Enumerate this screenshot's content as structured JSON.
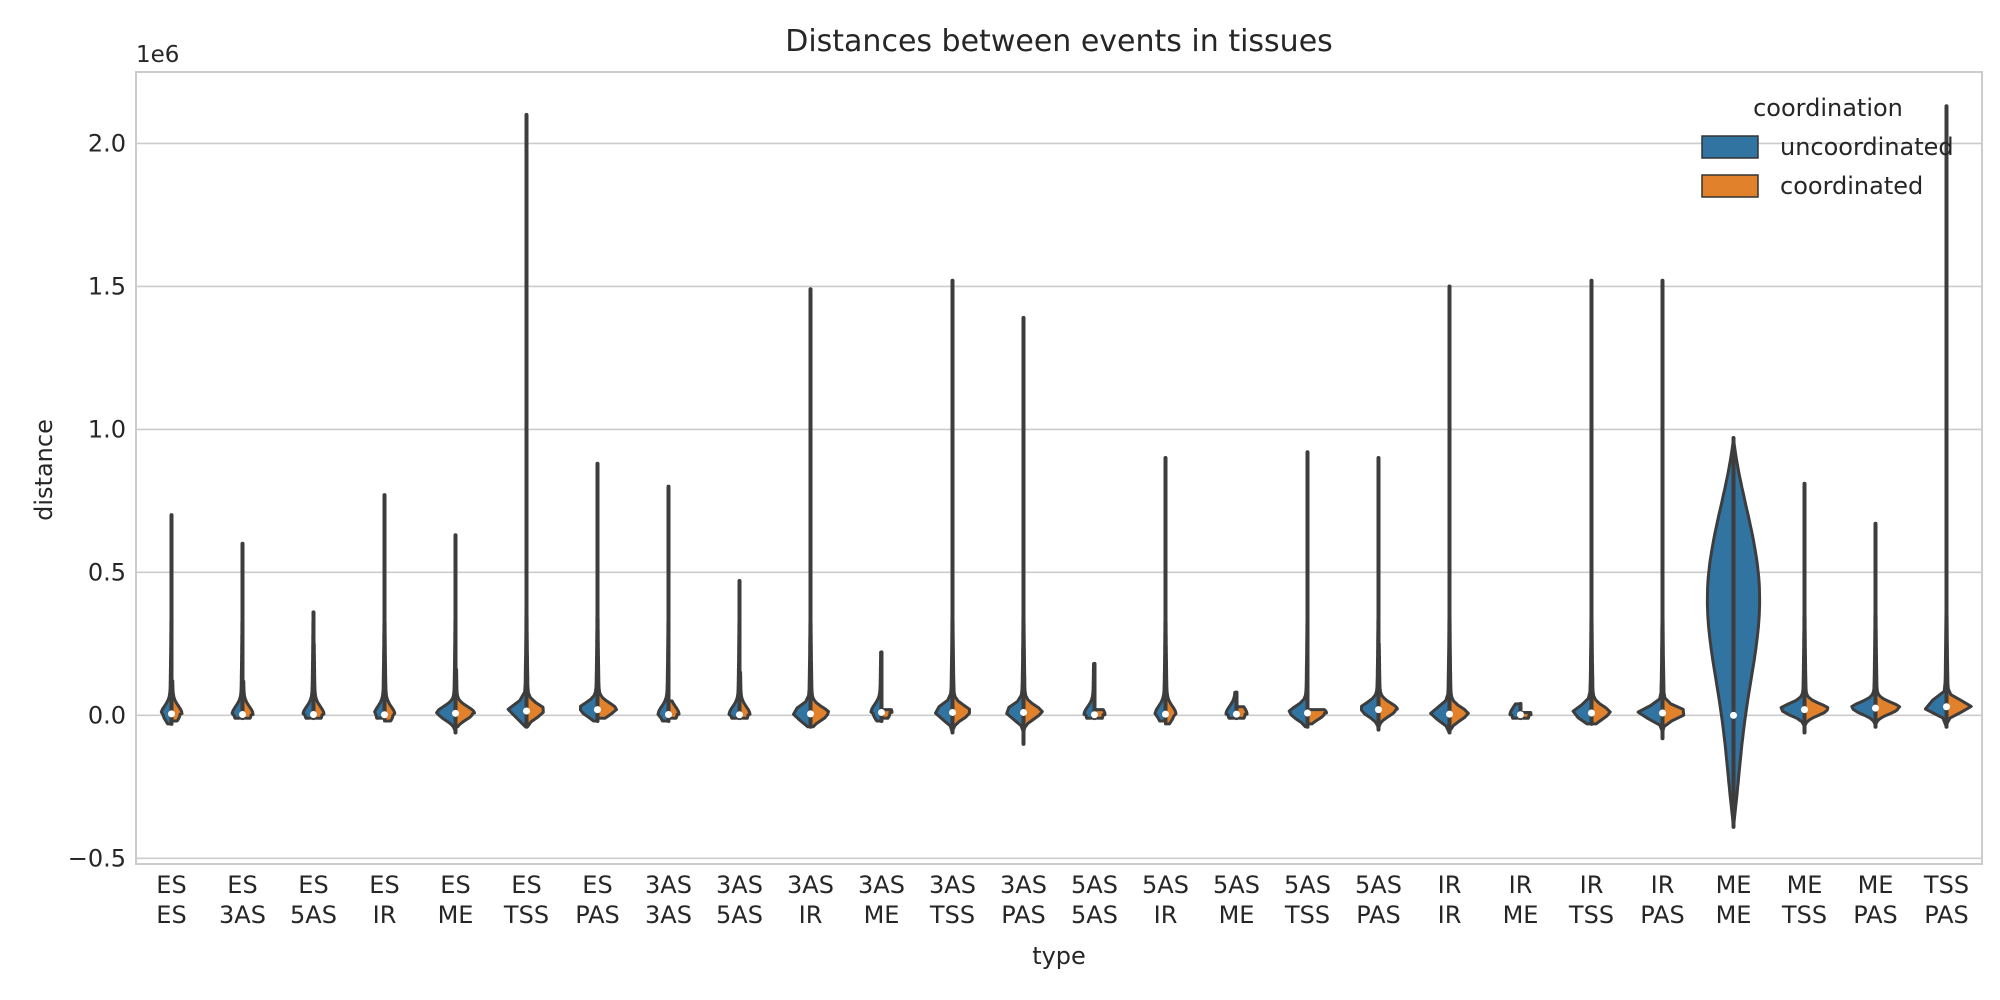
{
  "chart_data": {
    "type": "violin",
    "title": "Distances between events in tissues",
    "xlabel": "type",
    "ylabel": "distance",
    "y_scale_label": "1e6",
    "ylim": [
      -0.52,
      2.25
    ],
    "yticks": [
      -0.5,
      0.0,
      0.5,
      1.0,
      1.5,
      2.0
    ],
    "ytick_labels": [
      "−0.5",
      "0.0",
      "0.5",
      "1.0",
      "1.5",
      "2.0"
    ],
    "grid": "y",
    "legend": {
      "title": "coordination",
      "placement": "top-right",
      "entries": [
        {
          "name": "uncoordinated",
          "color": "#3274a1"
        },
        {
          "name": "coordinated",
          "color": "#e1812c"
        }
      ]
    },
    "categories": [
      [
        "ES",
        "ES"
      ],
      [
        "ES",
        "3AS"
      ],
      [
        "ES",
        "5AS"
      ],
      [
        "ES",
        "IR"
      ],
      [
        "ES",
        "ME"
      ],
      [
        "ES",
        "TSS"
      ],
      [
        "ES",
        "PAS"
      ],
      [
        "3AS",
        "3AS"
      ],
      [
        "3AS",
        "5AS"
      ],
      [
        "3AS",
        "IR"
      ],
      [
        "3AS",
        "ME"
      ],
      [
        "3AS",
        "TSS"
      ],
      [
        "3AS",
        "PAS"
      ],
      [
        "5AS",
        "5AS"
      ],
      [
        "5AS",
        "IR"
      ],
      [
        "5AS",
        "ME"
      ],
      [
        "5AS",
        "TSS"
      ],
      [
        "5AS",
        "PAS"
      ],
      [
        "IR",
        "IR"
      ],
      [
        "IR",
        "ME"
      ],
      [
        "IR",
        "TSS"
      ],
      [
        "IR",
        "PAS"
      ],
      [
        "ME",
        "ME"
      ],
      [
        "ME",
        "TSS"
      ],
      [
        "ME",
        "PAS"
      ],
      [
        "TSS",
        "PAS"
      ]
    ],
    "series": [
      {
        "name": "uncoordinated",
        "min": [
          -0.03,
          -0.01,
          -0.01,
          -0.01,
          -0.06,
          -0.04,
          -0.02,
          -0.02,
          -0.01,
          -0.04,
          -0.02,
          -0.06,
          -0.1,
          -0.01,
          -0.02,
          -0.01,
          -0.04,
          -0.05,
          -0.06,
          -0.01,
          -0.03,
          -0.08,
          -0.39,
          -0.06,
          -0.04,
          -0.04
        ],
        "max": [
          0.7,
          0.6,
          0.36,
          0.77,
          0.63,
          2.1,
          0.88,
          0.8,
          0.47,
          1.49,
          0.22,
          1.52,
          1.39,
          0.18,
          0.9,
          0.08,
          0.92,
          0.9,
          1.5,
          0.04,
          1.52,
          1.52,
          0.97,
          0.81,
          0.67,
          2.13
        ],
        "median": [
          0.005,
          0.003,
          0.003,
          0.002,
          0.007,
          0.015,
          0.02,
          0.003,
          0.002,
          0.005,
          0.01,
          0.01,
          0.01,
          0.002,
          0.004,
          0.004,
          0.008,
          0.02,
          0.004,
          0.002,
          0.008,
          0.008,
          0.0,
          0.02,
          0.025,
          0.03
        ],
        "spread": [
          0.3,
          0.3,
          0.3,
          0.3,
          0.6,
          0.6,
          0.6,
          0.3,
          0.3,
          0.6,
          0.3,
          0.6,
          0.6,
          0.3,
          0.3,
          0.3,
          0.6,
          0.6,
          0.6,
          0.3,
          0.6,
          0.8,
          1.0,
          0.8,
          0.8,
          0.8
        ]
      },
      {
        "name": "coordinated",
        "min": [
          -0.02,
          -0.01,
          -0.01,
          -0.02,
          -0.04,
          -0.04,
          -0.01,
          -0.01,
          -0.01,
          -0.04,
          -0.01,
          -0.05,
          -0.07,
          -0.01,
          -0.03,
          -0.01,
          -0.03,
          -0.04,
          -0.05,
          -0.01,
          -0.03,
          -0.06,
          null,
          -0.06,
          -0.03,
          -0.03
        ],
        "max": [
          0.12,
          0.12,
          0.25,
          0.45,
          0.16,
          1.15,
          0.7,
          0.05,
          0.15,
          0.7,
          0.02,
          0.95,
          0.9,
          0.02,
          0.6,
          0.03,
          0.02,
          0.25,
          0.95,
          0.01,
          0.95,
          1.35,
          null,
          0.55,
          0.35,
          1.4
        ],
        "median": [
          0.005,
          0.003,
          0.003,
          0.002,
          0.007,
          0.015,
          0.02,
          0.003,
          0.002,
          0.005,
          0.01,
          0.01,
          0.01,
          0.002,
          0.004,
          0.004,
          0.008,
          0.02,
          0.004,
          0.002,
          0.008,
          0.008,
          null,
          0.02,
          0.025,
          0.03
        ],
        "spread": [
          0.3,
          0.3,
          0.3,
          0.3,
          0.6,
          0.6,
          0.6,
          0.3,
          0.3,
          0.6,
          0.3,
          0.6,
          0.6,
          0.3,
          0.3,
          0.3,
          0.6,
          0.6,
          0.6,
          0.3,
          0.6,
          0.8,
          null,
          0.8,
          0.8,
          0.8
        ]
      }
    ]
  }
}
